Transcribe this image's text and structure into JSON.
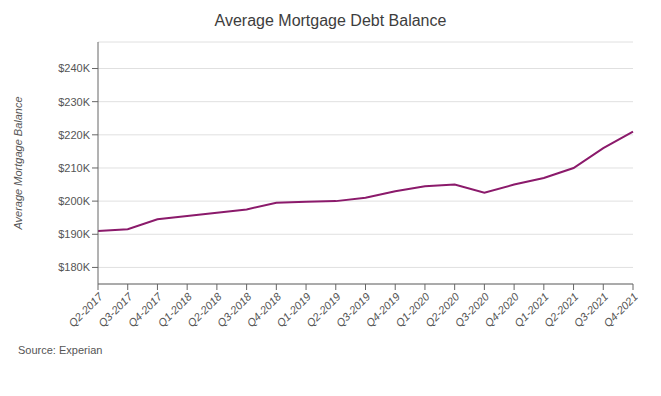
{
  "chart_data": {
    "type": "line",
    "title": "Average Mortgage Debt Balance",
    "y_label": "Average Mortgage Balance",
    "annotations": [
      "Source: Experian"
    ],
    "color": "#8B1A6B",
    "categories": [
      "Q2-2017",
      "Q3-2017",
      "Q4-2017",
      "Q1-2018",
      "Q2-2018",
      "Q3-2018",
      "Q4-2018",
      "Q1-2019",
      "Q2-2019",
      "Q3-2019",
      "Q4-2019",
      "Q1-2020",
      "Q2-2020",
      "Q3-2020",
      "Q4-2020",
      "Q1-2021",
      "Q2-2021",
      "Q3-2021",
      "Q4-2021"
    ],
    "values": [
      191000,
      191500,
      194500,
      195500,
      196500,
      197500,
      199500,
      199800,
      200000,
      201000,
      203000,
      204500,
      205000,
      202500,
      205000,
      207000,
      210000,
      216000,
      221000
    ],
    "ylim": [
      175000,
      248000
    ],
    "yticks": [
      {
        "value": 180000,
        "label": "$180K"
      },
      {
        "value": 190000,
        "label": "$190K"
      },
      {
        "value": 200000,
        "label": "$200K"
      },
      {
        "value": 210000,
        "label": "$210K"
      },
      {
        "value": 220000,
        "label": "$220K"
      },
      {
        "value": 230000,
        "label": "$230K"
      },
      {
        "value": 240000,
        "label": "$240K"
      }
    ],
    "grid": true
  }
}
